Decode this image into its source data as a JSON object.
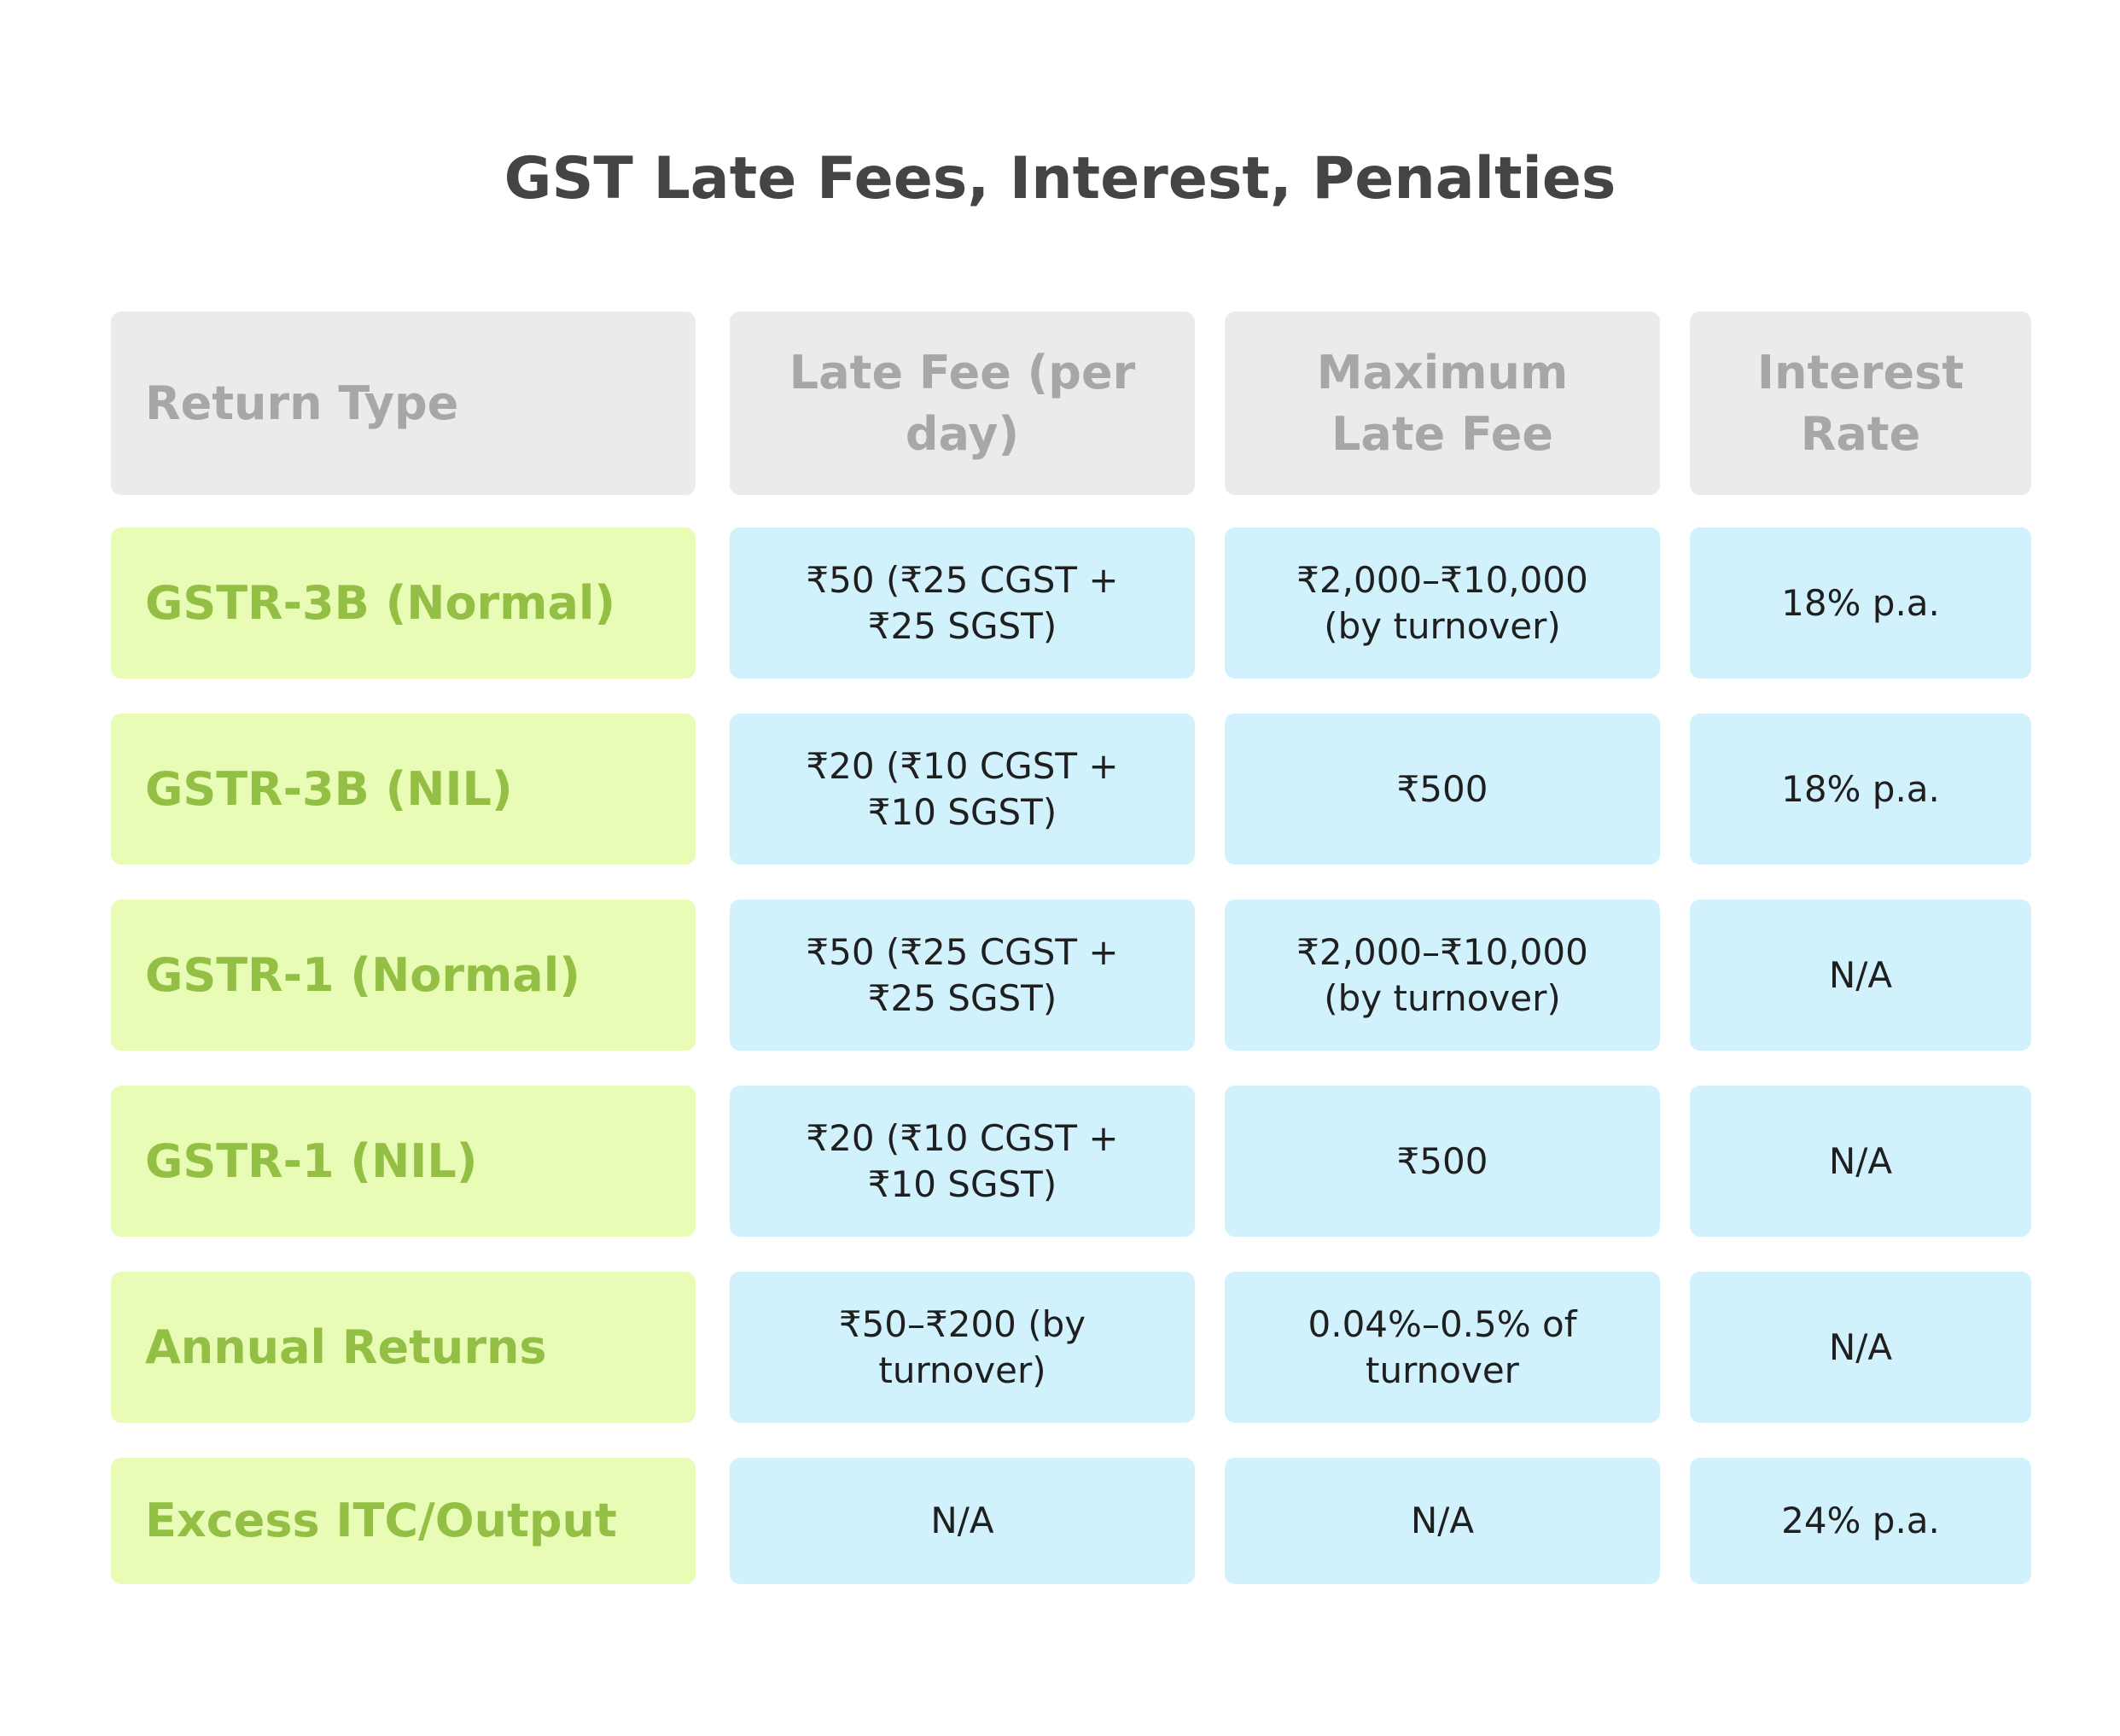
{
  "chart_data": {
    "type": "table",
    "title": "GST Late Fees, Interest, Penalties",
    "columns": [
      "Return Type",
      "Late Fee (per day)",
      "Maximum Late Fee",
      "Interest Rate"
    ],
    "rows": [
      {
        "label": "GSTR-3B (Normal)",
        "cells": [
          "₹50 (₹25 CGST + ₹25 SGST)",
          "₹2,000–₹10,000 (by turnover)",
          "18% p.a."
        ]
      },
      {
        "label": "GSTR-3B (NIL)",
        "cells": [
          "₹20 (₹10 CGST + ₹10 SGST)",
          "₹500",
          "18% p.a."
        ]
      },
      {
        "label": "GSTR-1 (Normal)",
        "cells": [
          "₹50 (₹25 CGST + ₹25 SGST)",
          "₹2,000–₹10,000 (by turnover)",
          "N/A"
        ]
      },
      {
        "label": "GSTR-1 (NIL)",
        "cells": [
          "₹20 (₹10 CGST + ₹10 SGST)",
          "₹500",
          "N/A"
        ]
      },
      {
        "label": "Annual Returns",
        "cells": [
          "₹50–₹200 (by turnover)",
          "0.04%–0.5% of turnover",
          "N/A"
        ]
      },
      {
        "label": "Excess ITC/Output",
        "cells": [
          "N/A",
          "N/A",
          "24% p.a."
        ]
      }
    ]
  },
  "colors": {
    "header_bg": "#ebebeb",
    "header_text": "#a7a7a7",
    "row_label_bg": "#e8fcb6",
    "row_label_text": "#93bf44",
    "value_bg": "#d1f2fd",
    "value_text": "#1f1f1f",
    "title_text": "#444444"
  }
}
